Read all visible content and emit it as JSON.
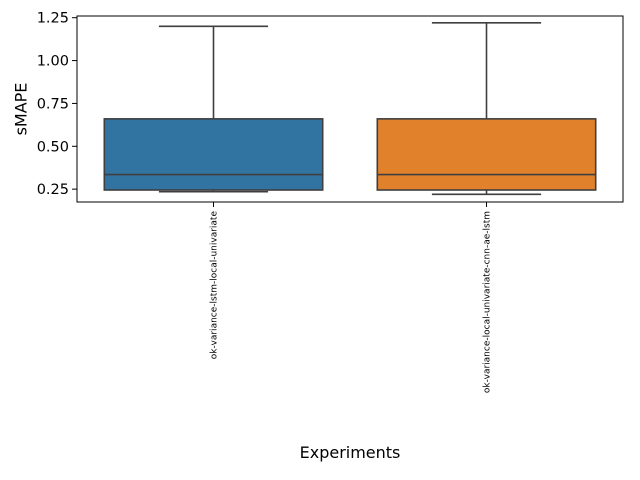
{
  "chart_data": {
    "type": "box",
    "title": "",
    "xlabel": "Experiments",
    "ylabel": "sMAPE",
    "ylim": [
      0.175,
      1.26
    ],
    "yticks": [
      0.25,
      0.5,
      0.75,
      1.0,
      1.25
    ],
    "ytick_labels": [
      "0.25",
      "0.50",
      "0.75",
      "1.00",
      "1.25"
    ],
    "grid": false,
    "legend": "none",
    "categories": [
      "ok-variance-lstm-local-univariate",
      "ok-variance-local-univariate-cnn-ae-lstm"
    ],
    "boxes": [
      {
        "whisker_low": 0.235,
        "q1": 0.245,
        "median": 0.335,
        "q3": 0.66,
        "whisker_high": 1.2,
        "color": "#3274a1"
      },
      {
        "whisker_low": 0.22,
        "q1": 0.245,
        "median": 0.335,
        "q3": 0.66,
        "whisker_high": 1.22,
        "color": "#e1812c"
      }
    ]
  }
}
